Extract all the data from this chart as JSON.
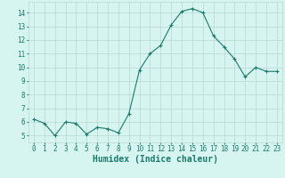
{
  "x": [
    0,
    1,
    2,
    3,
    4,
    5,
    6,
    7,
    8,
    9,
    10,
    11,
    12,
    13,
    14,
    15,
    16,
    17,
    18,
    19,
    20,
    21,
    22,
    23
  ],
  "y": [
    6.2,
    5.9,
    5.0,
    6.0,
    5.9,
    5.1,
    5.6,
    5.5,
    5.2,
    6.6,
    9.8,
    11.0,
    11.6,
    13.1,
    14.1,
    14.3,
    14.0,
    12.3,
    11.5,
    10.6,
    9.3,
    10.0,
    9.7,
    9.7
  ],
  "line_color": "#1a7a6a",
  "marker": "+",
  "marker_size": 3,
  "bg_color": "#d6f5f0",
  "grid_color": "#b8d8d2",
  "xlabel": "Humidex (Indice chaleur)",
  "ylim": [
    4.5,
    14.8
  ],
  "xlim": [
    -0.5,
    23.5
  ],
  "yticks": [
    5,
    6,
    7,
    8,
    9,
    10,
    11,
    12,
    13,
    14
  ],
  "xticks": [
    0,
    1,
    2,
    3,
    4,
    5,
    6,
    7,
    8,
    9,
    10,
    11,
    12,
    13,
    14,
    15,
    16,
    17,
    18,
    19,
    20,
    21,
    22,
    23
  ],
  "tick_label_fontsize": 5.5,
  "xlabel_fontsize": 7.0,
  "line_width": 0.8,
  "marker_edge_width": 0.8
}
